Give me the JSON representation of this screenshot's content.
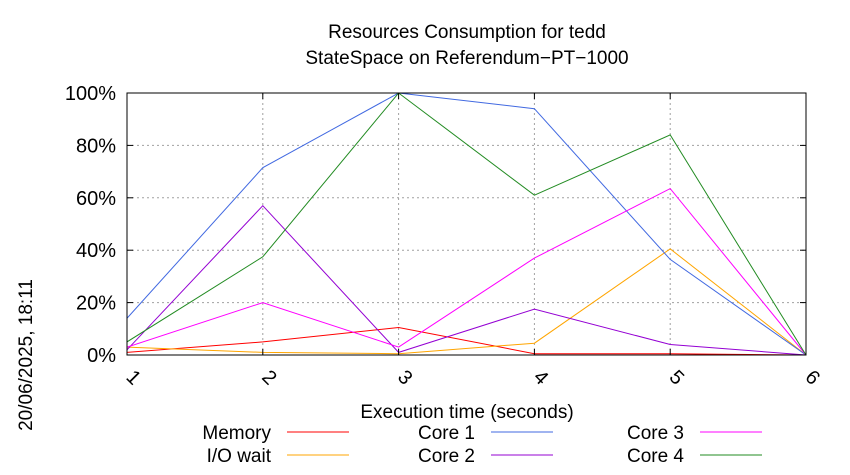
{
  "chart_data": {
    "type": "line",
    "title": [
      "Resources Consumption for tedd",
      "StateSpace on Referendum−PT−1000"
    ],
    "xlabel": "Execution time (seconds)",
    "ylabel": "",
    "side_label": "20/06/2025, 18:11",
    "x": [
      1,
      2,
      3,
      4,
      5,
      6
    ],
    "xticks": [
      "1",
      "2",
      "3",
      "4",
      "5",
      "6"
    ],
    "xlim": [
      1,
      6
    ],
    "ylim": [
      0,
      100
    ],
    "yticks": [
      "0%",
      "20%",
      "40%",
      "60%",
      "80%",
      "100%"
    ],
    "grid": true,
    "legend_position": "bottom",
    "series": [
      {
        "name": "Memory",
        "color": "#ff0000",
        "values": [
          1,
          5,
          10.5,
          0.5,
          0.5,
          0
        ]
      },
      {
        "name": "I/O wait",
        "color": "#ffa500",
        "values": [
          3,
          1,
          0.5,
          4.5,
          40.5,
          0
        ]
      },
      {
        "name": "Core 1",
        "color": "#4169e1",
        "values": [
          14,
          71.5,
          100,
          94,
          36.5,
          0
        ]
      },
      {
        "name": "Core 2",
        "color": "#9400d3",
        "values": [
          2,
          57,
          1,
          17.5,
          4,
          0
        ]
      },
      {
        "name": "Core 3",
        "color": "#ff00ff",
        "values": [
          3,
          20,
          3,
          37,
          63.5,
          0
        ]
      },
      {
        "name": "Core 4",
        "color": "#228b22",
        "values": [
          5,
          37.5,
          100,
          61,
          84,
          0
        ]
      }
    ]
  }
}
